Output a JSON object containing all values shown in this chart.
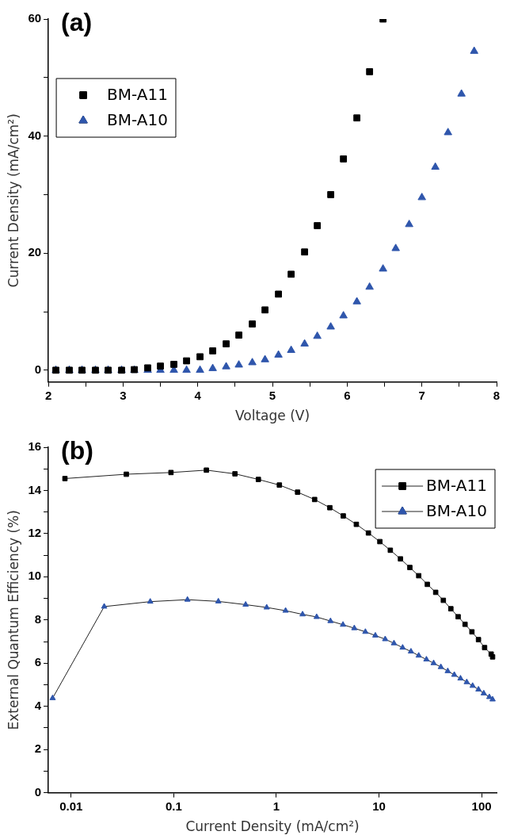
{
  "chart_data": [
    {
      "type": "scatter",
      "xlabel": "Voltage (V)",
      "ylabel": "Current Density (mA/cm²)",
      "annotations": [
        "(a)"
      ],
      "x": [
        2.1,
        2.28,
        2.45,
        2.63,
        2.8,
        2.98,
        3.15,
        3.33,
        3.5,
        3.68,
        3.85,
        4.03,
        4.2,
        4.38,
        4.55,
        4.73,
        4.9,
        5.08,
        5.25,
        5.43,
        5.6,
        5.78,
        5.95,
        6.13,
        6.3,
        6.48,
        6.65,
        6.83,
        7.0,
        7.18,
        7.35,
        7.53,
        7.7
      ],
      "series": [
        {
          "name": "BM-A11",
          "color": "#000000",
          "marker": "square",
          "values": [
            0,
            0,
            0,
            0,
            0,
            0,
            0.1,
            0.4,
            0.7,
            1.0,
            1.6,
            2.3,
            3.3,
            4.5,
            6.0,
            7.9,
            10.3,
            13.0,
            16.4,
            20.2,
            24.7,
            30.0,
            36.1,
            43.1,
            51.0,
            60.0,
            null,
            null,
            null,
            null,
            null,
            null,
            null
          ]
        },
        {
          "name": "BM-A10",
          "color": "#2f56ac",
          "marker": "triangle",
          "values": [
            0,
            0,
            0,
            0,
            0,
            0,
            0,
            0,
            0,
            0,
            0,
            0,
            0.3,
            0.6,
            0.9,
            1.3,
            1.8,
            2.6,
            3.4,
            4.5,
            5.8,
            7.4,
            9.3,
            11.7,
            14.2,
            17.3,
            20.8,
            24.9,
            29.5,
            34.7,
            40.6,
            47.2,
            54.5
          ]
        }
      ],
      "xlim": [
        2,
        8
      ],
      "xticks": [
        2,
        {
          "value": 2.5,
          "label": null
        },
        3,
        {
          "value": 3.5,
          "label": null
        },
        4,
        {
          "value": 4.5,
          "label": null
        },
        5,
        {
          "value": 5.5,
          "label": null
        },
        6,
        {
          "value": 6.5,
          "label": null
        },
        7,
        {
          "value": 7.5,
          "label": null
        },
        8
      ],
      "ylim": [
        -2,
        60
      ],
      "yticks": [
        0,
        {
          "value": 10,
          "label": null
        },
        20,
        {
          "value": 30,
          "label": null
        },
        40,
        {
          "value": 50,
          "label": null
        },
        60
      ],
      "grid": false,
      "legend": "top left"
    },
    {
      "type": "line",
      "xlabel": "Current Density (mA/cm²)",
      "ylabel": "External Quantum Efficiency (%)",
      "annotations": [
        "(b)"
      ],
      "log": "x",
      "series": [
        {
          "name": "BM-A11",
          "color": "#000000",
          "marker": "square",
          "x": [
            0.0087,
            0.0345,
            0.094,
            0.208,
            0.395,
            0.668,
            1.07,
            1.61,
            2.36,
            3.32,
            4.49,
            6.02,
            7.89,
            10.2,
            12.9,
            16.2,
            20.0,
            24.4,
            29.6,
            35.7,
            42.4,
            50.2,
            59.1,
            69.0,
            80.5,
            93.3,
            107,
            124,
            128
          ],
          "values": [
            14.55,
            14.75,
            14.83,
            14.94,
            14.77,
            14.51,
            14.25,
            13.92,
            13.58,
            13.2,
            12.82,
            12.43,
            12.03,
            11.63,
            11.23,
            10.83,
            10.43,
            10.05,
            9.65,
            9.28,
            8.91,
            8.52,
            8.15,
            7.8,
            7.45,
            7.09,
            6.72,
            6.42,
            6.29
          ]
        },
        {
          "name": "BM-A10",
          "color": "#2f56ac",
          "marker": "triangle",
          "x": [
            0.0066,
            0.021,
            0.059,
            0.136,
            0.272,
            0.502,
            0.805,
            1.23,
            1.8,
            2.47,
            3.37,
            4.46,
            5.75,
            7.37,
            9.22,
            11.5,
            14.0,
            17.0,
            20.5,
            24.4,
            29.0,
            34.1,
            40.1,
            46.8,
            54.2,
            62.3,
            71.7,
            81.8,
            93.3,
            105,
            119,
            128
          ],
          "values": [
            4.38,
            8.62,
            8.85,
            8.94,
            8.86,
            8.71,
            8.58,
            8.43,
            8.26,
            8.14,
            7.95,
            7.78,
            7.62,
            7.45,
            7.28,
            7.11,
            6.92,
            6.72,
            6.54,
            6.35,
            6.17,
            6.0,
            5.82,
            5.63,
            5.46,
            5.29,
            5.12,
            4.95,
            4.78,
            4.6,
            4.43,
            4.32
          ]
        }
      ],
      "xlim": [
        0.006,
        140
      ],
      "xticks": [
        0.01,
        0.1,
        1,
        10,
        100
      ],
      "ylim": [
        0,
        16
      ],
      "yticks": [
        0,
        {
          "value": 1,
          "label": null
        },
        2,
        {
          "value": 3,
          "label": null
        },
        4,
        {
          "value": 5,
          "label": null
        },
        6,
        {
          "value": 7,
          "label": null
        },
        8,
        {
          "value": 9,
          "label": null
        },
        10,
        {
          "value": 11,
          "label": null
        },
        12,
        {
          "value": 13,
          "label": null
        },
        14,
        {
          "value": 15,
          "label": null
        },
        16
      ],
      "grid": false,
      "legend": "top right"
    }
  ]
}
